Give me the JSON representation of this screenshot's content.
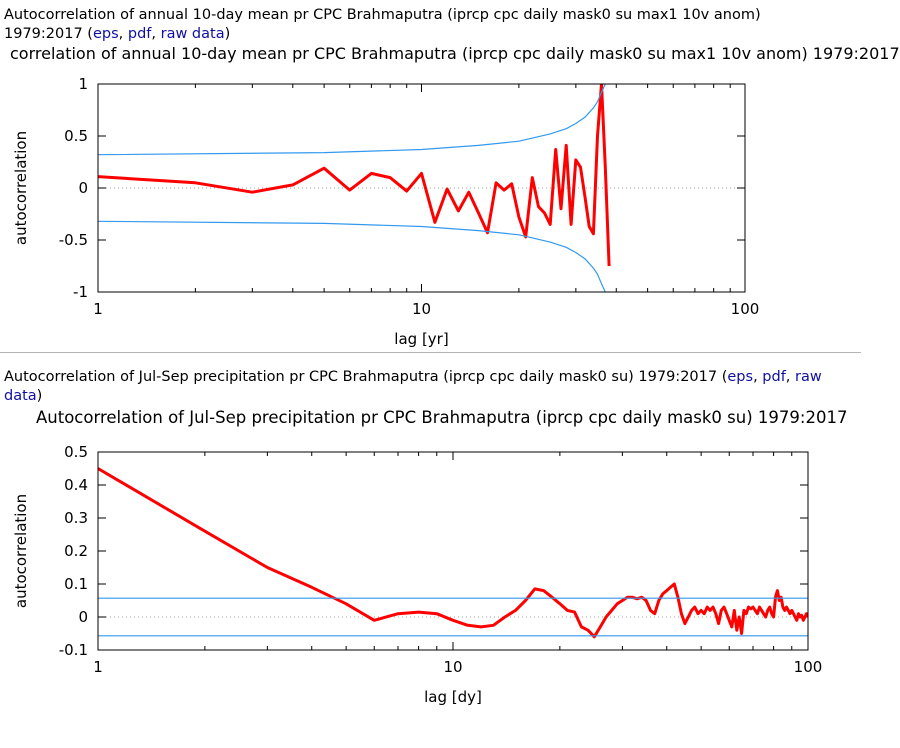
{
  "sections": [
    {
      "caption_line1": "Autocorrelation of annual 10-day mean pr CPC Brahmaputra (iprcp cpc daily mask0 su max1 10v anom)",
      "caption_line2_prefix": "1979:2017 (",
      "links": {
        "eps": "eps",
        "pdf": "pdf",
        "raw": "raw data"
      },
      "caption_suffix": ")"
    },
    {
      "caption_line1": "Autocorrelation of Jul-Sep precipitation pr CPC Brahmaputra (iprcp cpc daily mask0 su) 1979:2017 (",
      "links": {
        "eps": "eps",
        "pdf": "pdf",
        "raw": "raw"
      },
      "caption_line2": "data",
      "caption_suffix": ")"
    }
  ],
  "chart_data": [
    {
      "type": "line",
      "title": "correlation of annual 10-day mean pr CPC Brahmaputra (iprcp cpc daily mask0 su max1 10v anom) 1979:2017",
      "xlabel": "lag [yr]",
      "ylabel": "autocorrelation",
      "xscale": "log",
      "xlim": [
        1,
        100
      ],
      "ylim": [
        -1,
        1
      ],
      "xticks": [
        "1",
        "10",
        "100"
      ],
      "yticks": [
        "1",
        "0.5",
        "0",
        "-0.5",
        "-1"
      ],
      "grid": "dotted zero line",
      "colors": {
        "acf": "#ff0000",
        "bounds": "#3399ee",
        "zero": "#a0a0a0"
      },
      "series": [
        {
          "role": "acf",
          "x": [
            1,
            2,
            3,
            4,
            5,
            6,
            7,
            8,
            9,
            10,
            11,
            12,
            13,
            14,
            15,
            16,
            17,
            18,
            19,
            20,
            21,
            22,
            23,
            24,
            25,
            26,
            27,
            28,
            29,
            30,
            31,
            32,
            33,
            34,
            35,
            36,
            37,
            38
          ],
          "y": [
            0.11,
            0.05,
            -0.04,
            0.03,
            0.19,
            -0.02,
            0.14,
            0.1,
            -0.03,
            0.14,
            -0.33,
            -0.01,
            -0.22,
            -0.04,
            -0.24,
            -0.43,
            0.05,
            -0.02,
            0.04,
            -0.28,
            -0.47,
            0.1,
            -0.18,
            -0.24,
            -0.35,
            0.37,
            -0.2,
            0.41,
            -0.35,
            0.27,
            0.2,
            -0.08,
            -0.37,
            -0.44,
            0.5,
            1.0,
            0.2,
            -0.75
          ]
        },
        {
          "role": "upper-bound",
          "x": [
            1,
            5,
            10,
            15,
            20,
            25,
            28,
            30,
            32,
            34,
            35,
            36,
            37
          ],
          "y": [
            0.32,
            0.34,
            0.37,
            0.41,
            0.45,
            0.52,
            0.57,
            0.62,
            0.68,
            0.77,
            0.83,
            0.92,
            1.0
          ]
        },
        {
          "role": "lower-bound",
          "x": [
            1,
            5,
            10,
            15,
            20,
            25,
            28,
            30,
            32,
            34,
            35,
            36,
            37
          ],
          "y": [
            -0.32,
            -0.34,
            -0.37,
            -0.41,
            -0.45,
            -0.52,
            -0.57,
            -0.62,
            -0.68,
            -0.77,
            -0.83,
            -0.92,
            -1.0
          ]
        }
      ]
    },
    {
      "type": "line",
      "title": "Autocorrelation of Jul-Sep precipitation pr CPC Brahmaputra (iprcp cpc daily mask0 su) 1979:2017",
      "xlabel": "lag [dy]",
      "ylabel": "autocorrelation",
      "xscale": "log",
      "xlim": [
        1,
        100
      ],
      "ylim": [
        -0.1,
        0.5
      ],
      "xticks": [
        "1",
        "10",
        "100"
      ],
      "yticks": [
        "0.5",
        "0.4",
        "0.3",
        "0.2",
        "0.1",
        "0",
        "-0.1"
      ],
      "grid": "dotted zero line",
      "colors": {
        "acf": "#ff0000",
        "bounds": "#3399ee",
        "zero": "#a0a0a0"
      },
      "series": [
        {
          "role": "acf",
          "x": [
            1,
            2,
            3,
            4,
            5,
            6,
            7,
            8,
            9,
            10,
            11,
            12,
            13,
            14,
            15,
            16,
            17,
            18,
            19,
            20,
            21,
            22,
            23,
            24,
            25,
            26,
            27,
            28,
            29,
            30,
            31,
            32,
            33,
            34,
            35,
            36,
            37,
            38,
            39,
            40,
            41,
            42,
            43,
            44,
            45,
            46,
            47,
            48,
            49,
            50,
            51,
            52,
            53,
            54,
            55,
            56,
            57,
            58,
            59,
            60,
            61,
            62,
            63,
            64,
            65,
            66,
            67,
            68,
            69,
            70,
            71,
            72,
            73,
            74,
            75,
            76,
            77,
            78,
            79,
            80,
            81,
            82,
            83,
            84,
            85,
            86,
            87,
            88,
            89,
            90,
            91,
            92,
            93,
            94,
            95,
            96,
            97,
            98,
            99,
            100
          ],
          "y": [
            0.45,
            0.26,
            0.15,
            0.09,
            0.04,
            -0.01,
            0.01,
            0.015,
            0.01,
            -0.01,
            -0.025,
            -0.03,
            -0.025,
            0.0,
            0.02,
            0.05,
            0.085,
            0.08,
            0.06,
            0.04,
            0.02,
            0.015,
            -0.03,
            -0.04,
            -0.06,
            -0.03,
            0.0,
            0.02,
            0.04,
            0.05,
            0.06,
            0.06,
            0.055,
            0.06,
            0.05,
            0.02,
            0.01,
            0.05,
            0.07,
            0.08,
            0.09,
            0.1,
            0.06,
            0.01,
            -0.02,
            0.0,
            0.02,
            0.03,
            0.01,
            0.02,
            0.01,
            0.03,
            0.02,
            0.03,
            0.01,
            -0.02,
            0.02,
            0.03,
            0.01,
            -0.01,
            -0.03,
            0.02,
            -0.04,
            0.0,
            -0.05,
            0.02,
            0.01,
            0.03,
            0.025,
            0.03,
            0.02,
            0.01,
            0.03,
            0.02,
            0.01,
            0.0,
            0.02,
            0.03,
            0.01,
            0.0,
            0.06,
            0.08,
            0.05,
            0.06,
            0.03,
            0.02,
            0.03,
            0.02,
            0.01,
            0.02,
            0.01,
            0.0,
            -0.01,
            0.01,
            0.0,
            0.005,
            -0.01,
            0.0,
            0.01,
            0.0
          ]
        },
        {
          "role": "upper-bound",
          "x": [
            1,
            100
          ],
          "y": [
            0.057,
            0.057
          ]
        },
        {
          "role": "lower-bound",
          "x": [
            1,
            100
          ],
          "y": [
            -0.057,
            -0.057
          ]
        }
      ]
    }
  ]
}
